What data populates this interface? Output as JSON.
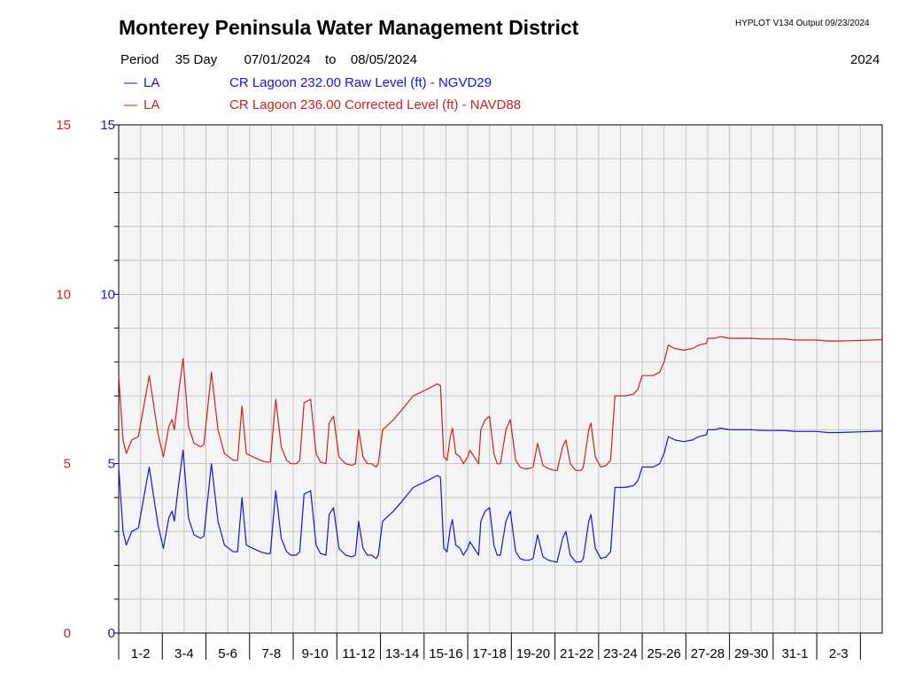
{
  "header": {
    "title": "Monterey Peninsula Water Management District",
    "stamp": "HYPLOT V134  Output 09/23/2024",
    "period_label": "Period",
    "period_length": "35 Day",
    "start_date": "07/01/2024",
    "to_word": "to",
    "end_date": "08/05/2024",
    "year": "2024"
  },
  "colors": {
    "raw": "#1414d9",
    "corrected": "#cc1f1f",
    "plot_bg": "#f4f4f4",
    "grid": "#c4c4c4"
  },
  "chart_data": {
    "type": "line",
    "title": "Monterey Peninsula Water Management District",
    "x_unit": "day",
    "xlim": [
      1,
      36
    ],
    "ylim": [
      0,
      15
    ],
    "grid": true,
    "y_ticks_left": [
      "0",
      "5",
      "10",
      "15"
    ],
    "y_ticks_right": [
      "0",
      "5",
      "10",
      "15"
    ],
    "x_tick_labels": [
      "1-2",
      "3-4",
      "5-6",
      "7-8",
      "9-10",
      "11-12",
      "13-14",
      "15-16",
      "17-18",
      "19-20",
      "21-22",
      "23-24",
      "25-26",
      "27-28",
      "29-30",
      "31-1",
      "2-3"
    ],
    "series": [
      {
        "code": "LA",
        "name": "CR Lagoon  232.00 Raw Level (ft) - NGVD29",
        "color": "#1414d9",
        "points": [
          [
            1.0,
            4.9
          ],
          [
            1.2,
            3.0
          ],
          [
            1.35,
            2.6
          ],
          [
            1.6,
            3.0
          ],
          [
            1.9,
            3.1
          ],
          [
            2.4,
            4.9
          ],
          [
            2.8,
            3.2
          ],
          [
            3.05,
            2.5
          ],
          [
            3.3,
            3.4
          ],
          [
            3.45,
            3.6
          ],
          [
            3.55,
            3.3
          ],
          [
            3.75,
            4.4
          ],
          [
            3.95,
            5.4
          ],
          [
            4.2,
            3.4
          ],
          [
            4.45,
            2.9
          ],
          [
            4.75,
            2.8
          ],
          [
            4.9,
            2.85
          ],
          [
            5.25,
            5.0
          ],
          [
            5.55,
            3.3
          ],
          [
            5.85,
            2.6
          ],
          [
            6.25,
            2.4
          ],
          [
            6.45,
            2.4
          ],
          [
            6.65,
            4.0
          ],
          [
            6.85,
            2.6
          ],
          [
            7.15,
            2.5
          ],
          [
            7.5,
            2.4
          ],
          [
            7.75,
            2.35
          ],
          [
            7.95,
            2.35
          ],
          [
            8.2,
            4.2
          ],
          [
            8.45,
            2.8
          ],
          [
            8.7,
            2.4
          ],
          [
            8.9,
            2.3
          ],
          [
            9.15,
            2.3
          ],
          [
            9.3,
            2.4
          ],
          [
            9.5,
            4.1
          ],
          [
            9.8,
            4.2
          ],
          [
            10.05,
            2.6
          ],
          [
            10.25,
            2.35
          ],
          [
            10.5,
            2.3
          ],
          [
            10.65,
            3.5
          ],
          [
            10.85,
            3.7
          ],
          [
            11.1,
            2.5
          ],
          [
            11.4,
            2.3
          ],
          [
            11.7,
            2.25
          ],
          [
            11.85,
            2.3
          ],
          [
            12.0,
            3.3
          ],
          [
            12.2,
            2.5
          ],
          [
            12.4,
            2.3
          ],
          [
            12.6,
            2.3
          ],
          [
            12.8,
            2.2
          ],
          [
            12.9,
            2.3
          ],
          [
            13.1,
            3.3
          ],
          [
            13.6,
            3.6
          ],
          [
            14.0,
            3.9
          ],
          [
            14.5,
            4.3
          ],
          [
            15.0,
            4.45
          ],
          [
            15.6,
            4.65
          ],
          [
            15.75,
            4.6
          ],
          [
            15.9,
            2.5
          ],
          [
            16.05,
            2.4
          ],
          [
            16.2,
            3.1
          ],
          [
            16.3,
            3.35
          ],
          [
            16.45,
            2.6
          ],
          [
            16.65,
            2.5
          ],
          [
            16.8,
            2.3
          ],
          [
            17.0,
            2.5
          ],
          [
            17.1,
            2.7
          ],
          [
            17.3,
            2.5
          ],
          [
            17.4,
            2.4
          ],
          [
            17.5,
            2.3
          ],
          [
            17.6,
            3.3
          ],
          [
            17.8,
            3.6
          ],
          [
            18.0,
            3.7
          ],
          [
            18.2,
            2.6
          ],
          [
            18.35,
            2.3
          ],
          [
            18.5,
            2.3
          ],
          [
            18.75,
            3.3
          ],
          [
            18.95,
            3.6
          ],
          [
            19.2,
            2.4
          ],
          [
            19.4,
            2.2
          ],
          [
            19.6,
            2.15
          ],
          [
            19.8,
            2.15
          ],
          [
            20.0,
            2.2
          ],
          [
            20.2,
            2.9
          ],
          [
            20.45,
            2.25
          ],
          [
            20.7,
            2.15
          ],
          [
            21.0,
            2.1
          ],
          [
            21.1,
            2.1
          ],
          [
            21.35,
            2.8
          ],
          [
            21.5,
            3.0
          ],
          [
            21.7,
            2.3
          ],
          [
            21.95,
            2.1
          ],
          [
            22.2,
            2.1
          ],
          [
            22.3,
            2.2
          ],
          [
            22.55,
            3.3
          ],
          [
            22.65,
            3.5
          ],
          [
            22.85,
            2.5
          ],
          [
            23.1,
            2.2
          ],
          [
            23.35,
            2.25
          ],
          [
            23.55,
            2.4
          ],
          [
            23.75,
            4.3
          ],
          [
            24.2,
            4.3
          ],
          [
            24.6,
            4.35
          ],
          [
            24.8,
            4.5
          ],
          [
            25.0,
            4.9
          ],
          [
            25.5,
            4.9
          ],
          [
            25.8,
            5.0
          ],
          [
            26.0,
            5.3
          ],
          [
            26.2,
            5.8
          ],
          [
            26.5,
            5.7
          ],
          [
            26.9,
            5.65
          ],
          [
            27.3,
            5.7
          ],
          [
            27.6,
            5.8
          ],
          [
            27.95,
            5.85
          ],
          [
            28.0,
            6.0
          ],
          [
            28.3,
            6.0
          ],
          [
            28.6,
            6.05
          ],
          [
            29.0,
            6.0
          ],
          [
            29.5,
            6.0
          ],
          [
            30.0,
            6.0
          ],
          [
            30.5,
            5.98
          ],
          [
            31.0,
            5.98
          ],
          [
            31.5,
            5.98
          ],
          [
            32.0,
            5.95
          ],
          [
            32.5,
            5.95
          ],
          [
            33.0,
            5.95
          ],
          [
            33.5,
            5.92
          ],
          [
            34.0,
            5.92
          ],
          [
            34.5,
            5.93
          ],
          [
            35.0,
            5.94
          ],
          [
            35.5,
            5.95
          ],
          [
            36.0,
            5.96
          ]
        ]
      },
      {
        "code": "LA",
        "name": "CR Lagoon  236.00 Corrected Level (ft) - NAVD88",
        "color": "#cc1f1f",
        "offset": 2.7,
        "points_from": "raw"
      }
    ]
  }
}
